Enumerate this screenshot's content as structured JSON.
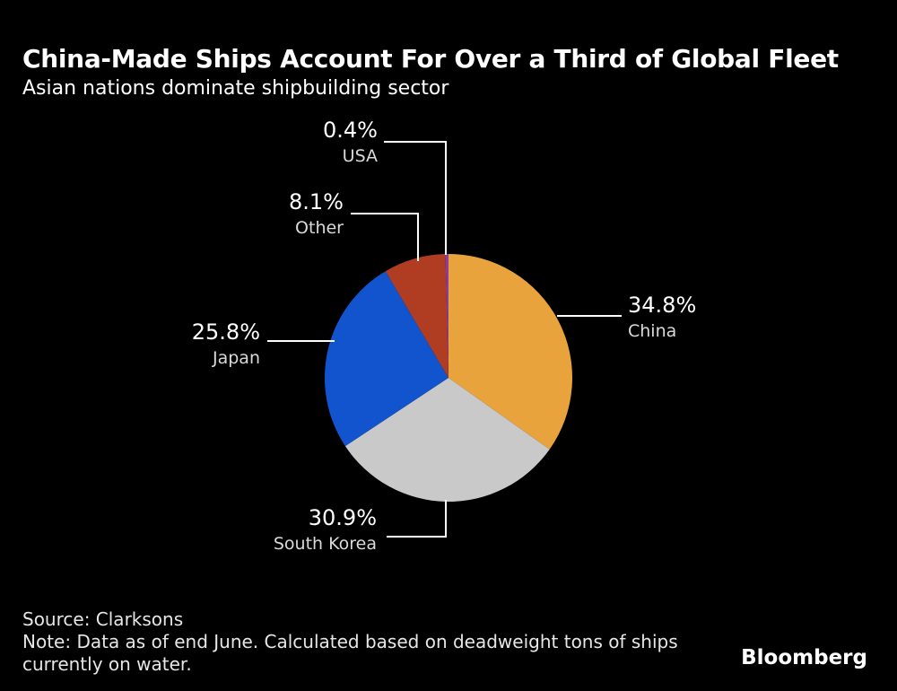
{
  "header": {
    "title": "China-Made Ships Account For Over a Third of Global Fleet",
    "subtitle": "Asian nations dominate shipbuilding sector"
  },
  "chart_data": {
    "type": "pie",
    "title": "China-Made Ships Account For Over a Third of Global Fleet",
    "subtitle": "Asian nations dominate shipbuilding sector",
    "unit": "%",
    "direction": "clockwise",
    "start_angle_deg": 0,
    "legend_position": "none",
    "labels": [
      "China",
      "South Korea",
      "Japan",
      "Other",
      "USA"
    ],
    "values": [
      34.8,
      30.9,
      25.8,
      8.1,
      0.4
    ],
    "colors": [
      "#E8A33D",
      "#C9C9C9",
      "#1254CE",
      "#B03D22",
      "#8C3C9E"
    ],
    "slices": [
      {
        "label": "China",
        "pct_label": "34.8%",
        "value": 34.8,
        "color": "#E8A33D"
      },
      {
        "label": "South Korea",
        "pct_label": "30.9%",
        "value": 30.9,
        "color": "#C9C9C9"
      },
      {
        "label": "Japan",
        "pct_label": "25.8%",
        "value": 25.8,
        "color": "#1254CE"
      },
      {
        "label": "Other",
        "pct_label": "8.1%",
        "value": 8.1,
        "color": "#B03D22"
      },
      {
        "label": "USA",
        "pct_label": "0.4%",
        "value": 0.4,
        "color": "#8C3C9E"
      }
    ]
  },
  "footer": {
    "source": "Source: Clarksons",
    "note": "Note: Data as of end June. Calculated based on deadweight tons of ships currently on water.",
    "brand": "Bloomberg"
  }
}
